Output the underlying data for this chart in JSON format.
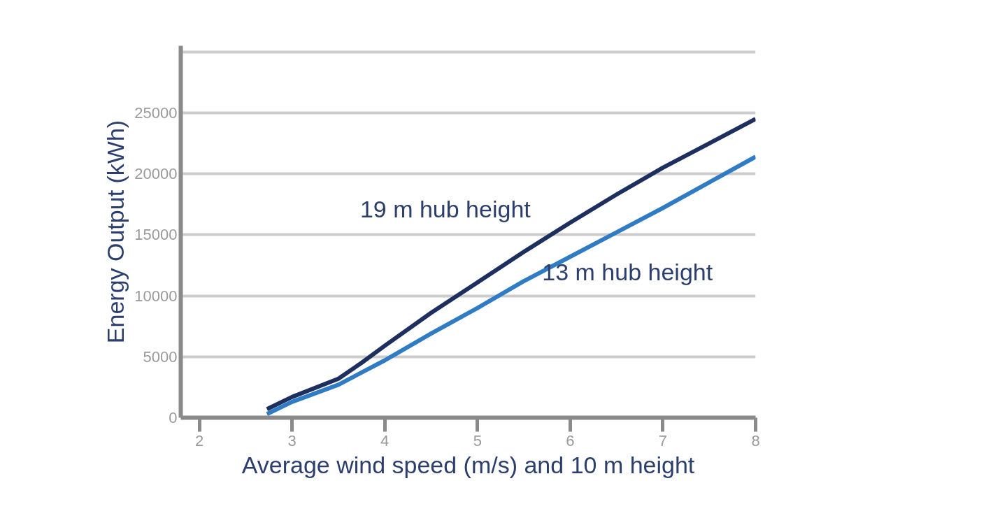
{
  "chart_data": {
    "type": "line",
    "xlabel": "Average wind speed (m/s) and 10 m height",
    "ylabel": "Energy Output (kWh)",
    "x": [
      2.73,
      3,
      3.5,
      3.75,
      4,
      4.5,
      5,
      5.5,
      6,
      6.5,
      7,
      7.5,
      8
    ],
    "series": [
      {
        "name": "19 m hub height",
        "color": "#1c2f5e",
        "values": [
          700,
          1700,
          3200,
          4500,
          5900,
          8600,
          11100,
          13600,
          16000,
          18300,
          20500,
          22500,
          24500
        ]
      },
      {
        "name": "13 m hub height",
        "color": "#2f7bc4",
        "values": [
          300,
          1300,
          2700,
          3700,
          4700,
          6900,
          9000,
          11200,
          13200,
          15200,
          17200,
          19300,
          21400
        ]
      }
    ],
    "xlim": [
      1.8,
      8
    ],
    "ylim": [
      0,
      30500
    ],
    "xticks": [
      2,
      3,
      4,
      5,
      6,
      7,
      8
    ],
    "yticks": [
      0,
      5000,
      10000,
      15000,
      20000,
      25000,
      {
        "value": 30000,
        "label": null
      }
    ],
    "grid": "y",
    "marker": "none",
    "line_style": "solid"
  }
}
